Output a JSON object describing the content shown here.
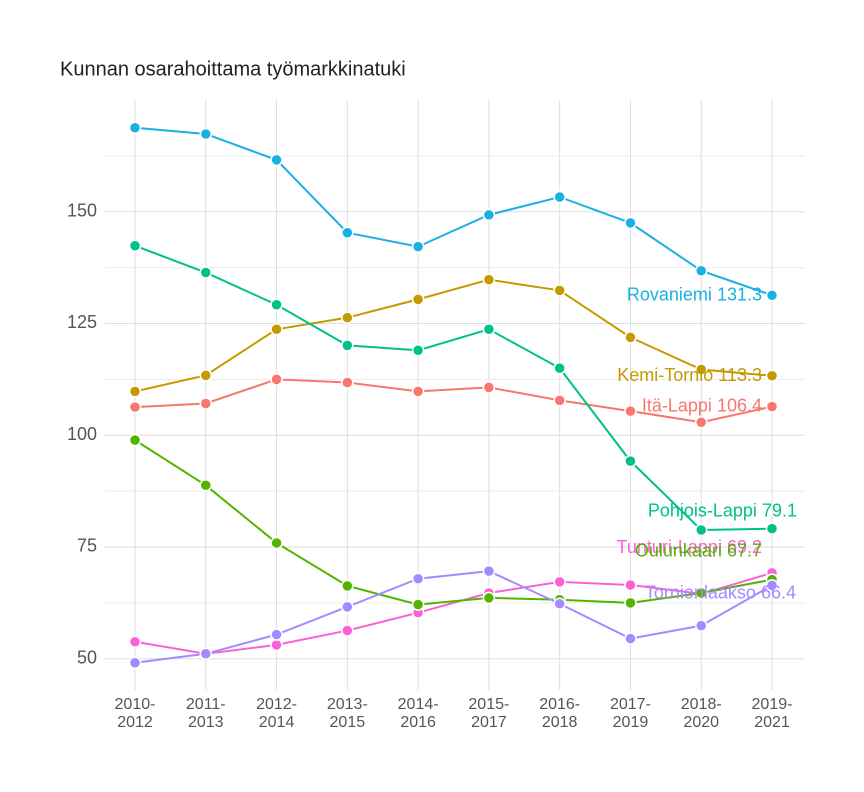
{
  "chart_data": {
    "type": "line",
    "title": "Kunnan osarahoittama työmarkkinatuki",
    "categories": [
      "2010-\n2012",
      "2011-\n2013",
      "2012-\n2014",
      "2013-\n2015",
      "2014-\n2016",
      "2015-\n2017",
      "2016-\n2018",
      "2017-\n2019",
      "2018-\n2020",
      "2019-\n2021"
    ],
    "series": [
      {
        "name": "Rovaniemi",
        "color": "#1ab0e3",
        "values": [
          168.8,
          167.4,
          161.6,
          145.3,
          142.2,
          149.3,
          153.3,
          147.5,
          136.8,
          131.3
        ]
      },
      {
        "name": "Kemi-Tornio",
        "color": "#c49a00",
        "values": [
          109.8,
          113.4,
          123.7,
          126.3,
          130.4,
          134.8,
          132.4,
          121.9,
          114.7,
          113.3
        ]
      },
      {
        "name": "Itä-Lappi",
        "color": "#f8766d",
        "values": [
          106.3,
          107.1,
          112.5,
          111.8,
          109.8,
          110.7,
          107.8,
          105.4,
          102.9,
          106.4
        ]
      },
      {
        "name": "Pohjois-Lappi",
        "color": "#00c08b",
        "values": [
          142.4,
          136.4,
          129.2,
          120.1,
          119.0,
          123.7,
          115.0,
          94.2,
          78.8,
          79.1
        ]
      },
      {
        "name": "Tunturi-Lappi",
        "color": "#fb61d7",
        "values": [
          53.8,
          51.1,
          53.1,
          56.3,
          60.3,
          64.7,
          67.2,
          66.5,
          64.5,
          69.2
        ]
      },
      {
        "name": "Oulunkaari",
        "color": "#53b400",
        "values": [
          98.9,
          88.8,
          75.9,
          66.3,
          62.1,
          63.6,
          63.2,
          62.5,
          64.7,
          67.7
        ]
      },
      {
        "name": "Tornionlaakso",
        "color": "#a58aff",
        "values": [
          49.1,
          51.1,
          55.4,
          61.6,
          67.9,
          69.6,
          62.3,
          54.5,
          57.4,
          66.4
        ]
      }
    ],
    "ylim": [
      43,
      175
    ],
    "yticks": [
      50,
      75,
      100,
      125,
      150
    ],
    "grid": true,
    "minor_grid": true
  }
}
